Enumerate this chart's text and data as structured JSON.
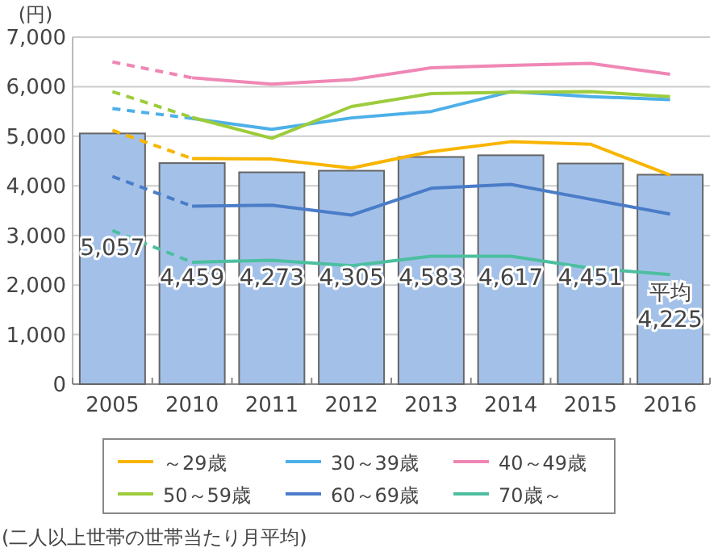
{
  "chart_data": {
    "type": "bar",
    "ylabel": "(円)",
    "categories": [
      "2005",
      "2010",
      "2011",
      "2012",
      "2013",
      "2014",
      "2015",
      "2016"
    ],
    "series": [
      {
        "name": "平均",
        "color": "#a3c1e8",
        "values": [
          5057,
          4459,
          4273,
          4305,
          4583,
          4617,
          4451,
          4225
        ],
        "value_labels": [
          "5,057",
          "4,459",
          "4,273",
          "4,305",
          "4,583",
          "4,617",
          "4,451",
          "4,225"
        ]
      },
      {
        "type": "line",
        "name": "～29歳",
        "color": "#f8b500",
        "values": [
          5120,
          4550,
          4540,
          4360,
          4690,
          4890,
          4840,
          4220
        ]
      },
      {
        "type": "line",
        "name": "30～39歳",
        "color": "#4db0e8",
        "values": [
          5560,
          5360,
          5140,
          5370,
          5500,
          5900,
          5800,
          5740
        ]
      },
      {
        "type": "line",
        "name": "40～49歳",
        "color": "#ef87b5",
        "values": [
          6500,
          6180,
          6050,
          6140,
          6380,
          6430,
          6470,
          6250
        ]
      },
      {
        "type": "line",
        "name": "50～59歳",
        "color": "#9ccc3c",
        "values": [
          5900,
          5380,
          4960,
          5600,
          5860,
          5890,
          5900,
          5800
        ]
      },
      {
        "type": "line",
        "name": "60～69歳",
        "color": "#4a7cc8",
        "values": [
          4190,
          3590,
          3610,
          3410,
          3950,
          4030,
          3730,
          3430
        ]
      },
      {
        "type": "line",
        "name": "70歳～",
        "color": "#4cbfa0",
        "values": [
          3100,
          2460,
          2500,
          2390,
          2580,
          2580,
          2340,
          2210
        ]
      }
    ],
    "ylim": [
      0,
      7000
    ],
    "yticks": [
      {
        "value": 0,
        "label": "0"
      },
      {
        "value": 1000,
        "label": "1,000"
      },
      {
        "value": 2000,
        "label": "2,000"
      },
      {
        "value": 3000,
        "label": "3,000"
      },
      {
        "value": 4000,
        "label": "4,000"
      },
      {
        "value": 5000,
        "label": "5,000"
      },
      {
        "value": 6000,
        "label": "6,000"
      },
      {
        "value": 7000,
        "label": "7,000"
      }
    ],
    "grid": "y",
    "legend": "bottom",
    "annotations": [
      "(二人以上世帯の世帯当たり月平均)"
    ]
  }
}
